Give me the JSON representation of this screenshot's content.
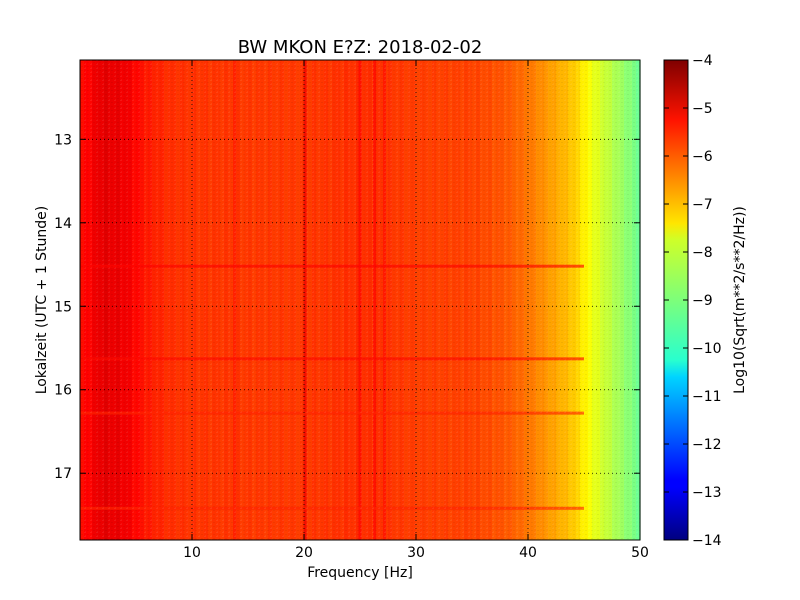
{
  "chart_data": {
    "type": "heatmap",
    "title": "BW MKON E?Z: 2018-02-02",
    "xlabel": "Frequency [Hz]",
    "ylabel": "Lokalzeit (UTC + 1 Stunde)",
    "colorbar_label": "Log10(Sqrt(m**2/s**2/Hz))",
    "xlim": [
      0,
      50
    ],
    "ylim": [
      17.8,
      12.05
    ],
    "x_ticks": [
      {
        "value": 10,
        "label": "10"
      },
      {
        "value": 20,
        "label": "20"
      },
      {
        "value": 30,
        "label": "30"
      },
      {
        "value": 40,
        "label": "40"
      },
      {
        "value": 50,
        "label": "50"
      }
    ],
    "y_ticks": [
      {
        "value": 13,
        "label": "13"
      },
      {
        "value": 14,
        "label": "14"
      },
      {
        "value": 15,
        "label": "15"
      },
      {
        "value": 16,
        "label": "16"
      },
      {
        "value": 17,
        "label": "17"
      }
    ],
    "colorbar_range": [
      -14,
      -4
    ],
    "colorbar_ticks": [
      {
        "value": -4,
        "label": "−4"
      },
      {
        "value": -5,
        "label": "−5"
      },
      {
        "value": -6,
        "label": "−6"
      },
      {
        "value": -7,
        "label": "−7"
      },
      {
        "value": -8,
        "label": "−8"
      },
      {
        "value": -9,
        "label": "−9"
      },
      {
        "value": -10,
        "label": "−10"
      },
      {
        "value": -11,
        "label": "−11"
      },
      {
        "value": -12,
        "label": "−12"
      },
      {
        "value": -13,
        "label": "−13"
      },
      {
        "value": -14,
        "label": "−14"
      }
    ],
    "colormap": "jet",
    "grid": true,
    "spectral_profile": {
      "frequency_hz": [
        0,
        2,
        4,
        6,
        8,
        10,
        15,
        20,
        25,
        30,
        35,
        38,
        40,
        42,
        44,
        45,
        46,
        48,
        50
      ],
      "value": [
        -5.4,
        -5.0,
        -5.1,
        -5.5,
        -5.7,
        -5.75,
        -5.8,
        -5.8,
        -5.7,
        -5.85,
        -5.9,
        -6.1,
        -6.4,
        -6.8,
        -7.2,
        -7.6,
        -8.0,
        -8.6,
        -9.2
      ]
    },
    "vertical_lines_hz": [
      {
        "frequency": 20.1,
        "value": -5.1
      },
      {
        "frequency": 13.8,
        "value": -5.5
      },
      {
        "frequency": 25.0,
        "value": -5.3
      },
      {
        "frequency": 26.3,
        "value": -5.3
      },
      {
        "frequency": 27.2,
        "value": -5.4
      }
    ],
    "horizontal_bands_hour": [
      {
        "hour": 14.52,
        "value": -5.3
      },
      {
        "hour": 15.63,
        "value": -5.35
      },
      {
        "hour": 16.28,
        "value": -5.6
      },
      {
        "hour": 17.42,
        "value": -5.6
      }
    ]
  }
}
